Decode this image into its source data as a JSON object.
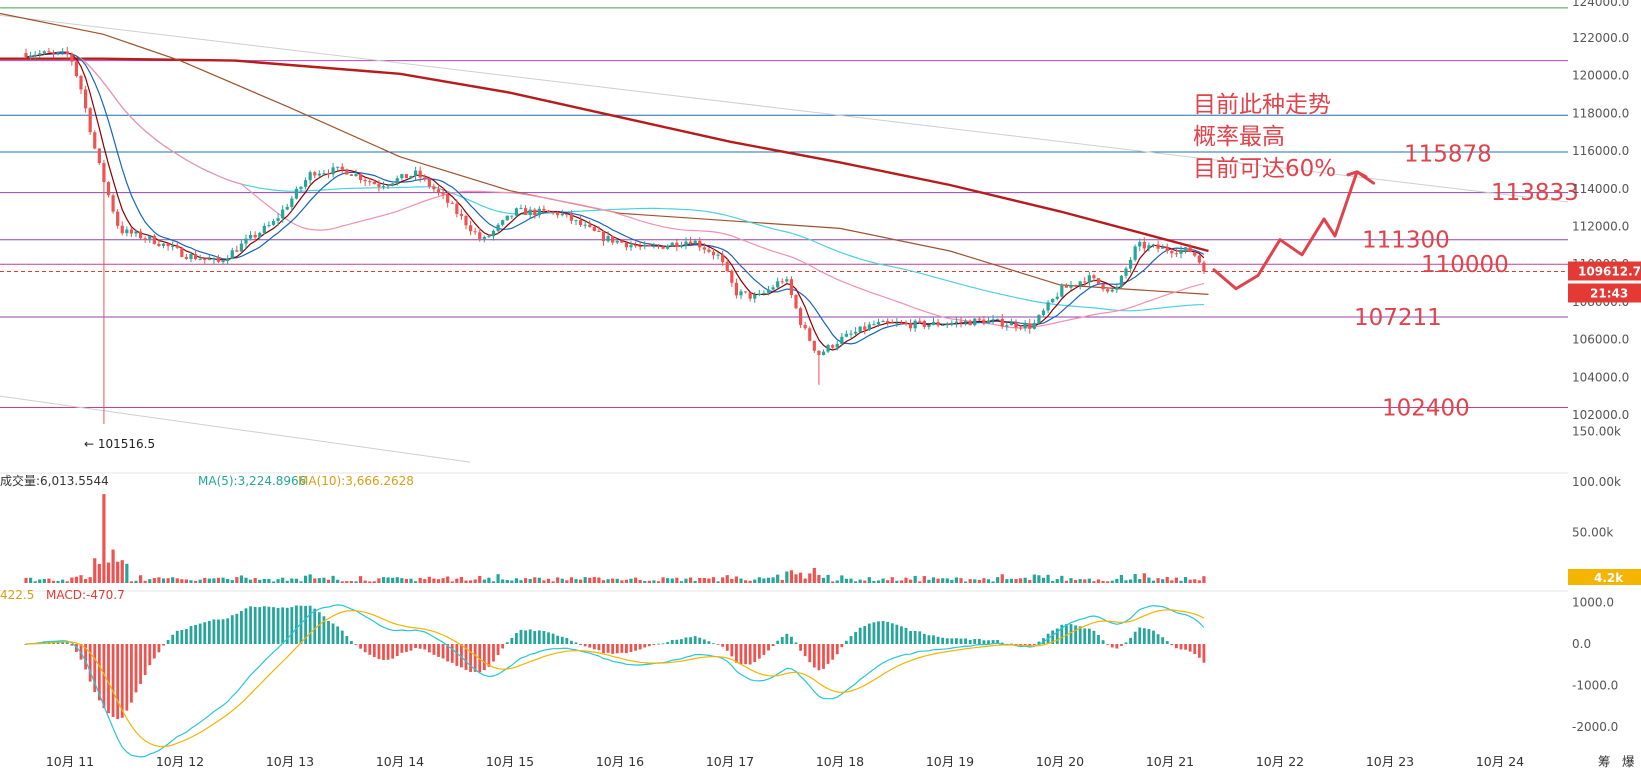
{
  "chart_data": [
    {
      "type": "candlestick",
      "y_ticks": [
        "124000.0",
        "122000.0",
        "120000.0",
        "118000.0",
        "116000.0",
        "114000.0",
        "112000.0",
        "110000.0",
        "108000.0",
        "106000.0",
        "104000.0",
        "102000.0"
      ],
      "y_tick_values": [
        124000,
        122000,
        120000,
        118000,
        116000,
        114000,
        112000,
        110000,
        108000,
        106000,
        104000,
        102000
      ],
      "x_ticks": [
        "10月 11",
        "10月 12",
        "10月 13",
        "10月 14",
        "10月 15",
        "10月 16",
        "10月 17",
        "10月 18",
        "10月 19",
        "10月 20",
        "10月 21",
        "10月 22",
        "10月 23",
        "10月 24"
      ],
      "x_tick_days": [
        11,
        12,
        13,
        14,
        15,
        16,
        17,
        18,
        19,
        20,
        21,
        22,
        23,
        24
      ],
      "ylim": [
        101000,
        124400
      ],
      "price_path": [
        {
          "day": 10.6,
          "price": 121200
        },
        {
          "day": 11.0,
          "price": 121100
        },
        {
          "day": 11.1,
          "price": 119300
        },
        {
          "day": 11.25,
          "price": 115500
        },
        {
          "day": 11.45,
          "price": 111800
        },
        {
          "day": 11.75,
          "price": 111300
        },
        {
          "day": 12.05,
          "price": 110500
        },
        {
          "day": 12.35,
          "price": 110100
        },
        {
          "day": 12.6,
          "price": 111200
        },
        {
          "day": 12.85,
          "price": 112200
        },
        {
          "day": 13.2,
          "price": 114900
        },
        {
          "day": 13.5,
          "price": 115000
        },
        {
          "day": 13.8,
          "price": 114200
        },
        {
          "day": 14.15,
          "price": 114800
        },
        {
          "day": 14.4,
          "price": 113500
        },
        {
          "day": 14.75,
          "price": 111200
        },
        {
          "day": 15.05,
          "price": 112800
        },
        {
          "day": 15.45,
          "price": 112700
        },
        {
          "day": 15.85,
          "price": 111400
        },
        {
          "day": 16.25,
          "price": 110800
        },
        {
          "day": 16.65,
          "price": 111300
        },
        {
          "day": 16.9,
          "price": 110400
        },
        {
          "day": 17.05,
          "price": 108500
        },
        {
          "day": 17.25,
          "price": 108200
        },
        {
          "day": 17.5,
          "price": 109300
        },
        {
          "day": 17.65,
          "price": 106800
        },
        {
          "day": 17.8,
          "price": 105200
        },
        {
          "day": 18.0,
          "price": 106000
        },
        {
          "day": 18.3,
          "price": 106800
        },
        {
          "day": 18.8,
          "price": 106800
        },
        {
          "day": 19.3,
          "price": 107000
        },
        {
          "day": 19.75,
          "price": 106700
        },
        {
          "day": 20.0,
          "price": 108600
        },
        {
          "day": 20.25,
          "price": 109300
        },
        {
          "day": 20.5,
          "price": 108500
        },
        {
          "day": 20.7,
          "price": 111000
        },
        {
          "day": 20.95,
          "price": 110800
        },
        {
          "day": 21.2,
          "price": 110700
        },
        {
          "day": 21.33,
          "price": 109612.7
        }
      ],
      "horizontal_levels": [
        {
          "price": 123600,
          "color": "#43a047"
        },
        {
          "price": 120800,
          "color": "#b04ab3"
        },
        {
          "price": 117900,
          "color": "#1e6fb0"
        },
        {
          "price": 115950,
          "color": "#1e6fb0"
        },
        {
          "price": 113800,
          "color": "#8e44ad"
        },
        {
          "price": 111300,
          "color": "#8e44ad"
        },
        {
          "price": 110000,
          "color": "#c2408c"
        },
        {
          "price": 107200,
          "color": "#8e44ad"
        },
        {
          "price": 102400,
          "color": "#c2408c"
        }
      ],
      "level_labels": [
        "115878",
        "113833",
        "111300",
        "110000",
        "107211",
        "102400"
      ],
      "level_label_values": [
        115878,
        113833,
        111300,
        110000,
        107211,
        102400
      ],
      "annotation_lines": [
        "目前此种走势",
        "概率最高",
        "目前可达60%"
      ],
      "low_marker": "← 101516.5",
      "low_marker_value": 101516.5,
      "current_price": "109612.7",
      "countdown": "21:43",
      "forecast_path": [
        {
          "day": 21.4,
          "price": 109700
        },
        {
          "day": 21.6,
          "price": 108700
        },
        {
          "day": 21.8,
          "price": 109400
        },
        {
          "day": 22.0,
          "price": 111300
        },
        {
          "day": 22.2,
          "price": 110500
        },
        {
          "day": 22.4,
          "price": 112400
        },
        {
          "day": 22.5,
          "price": 111500
        },
        {
          "day": 22.7,
          "price": 114900
        },
        {
          "day": 22.85,
          "price": 114300
        }
      ]
    },
    {
      "type": "bar",
      "title": "成交量",
      "legend": [
        "成交量:6,013.5544",
        "MA(5):3,224.8966",
        "MA(10):3,666.2628"
      ],
      "y_ticks": [
        "150.00k",
        "100.00k",
        "50.00k"
      ],
      "y_tick_values": [
        150000,
        100000,
        50000
      ],
      "current_value": "4.2k"
    },
    {
      "type": "bar",
      "title": "MACD",
      "legend": [
        "422.5",
        "MACD:-470.7"
      ],
      "y_ticks": [
        "1000.0",
        "0.0",
        "-1000.0",
        "-2000.0"
      ],
      "y_tick_values": [
        1000,
        0,
        -1000,
        -2000
      ]
    }
  ],
  "colors": {
    "up": "#26a69a",
    "down": "#ef5350",
    "annotation": "#e0434c",
    "ma_long": "#b71c1c",
    "ma_mid": "#a0522d",
    "ma_cyan": "#4dd0e1",
    "ma_pink": "#f48fb1",
    "ma_fast": "#8b0000",
    "ma_blue": "#1565c0",
    "macd_line": "#26c6da",
    "signal_line": "#f5b400",
    "countdown_bg": "#e53935",
    "vol_tag_bg": "#f5b400"
  },
  "footer_chars": [
    "筹",
    "爆"
  ]
}
